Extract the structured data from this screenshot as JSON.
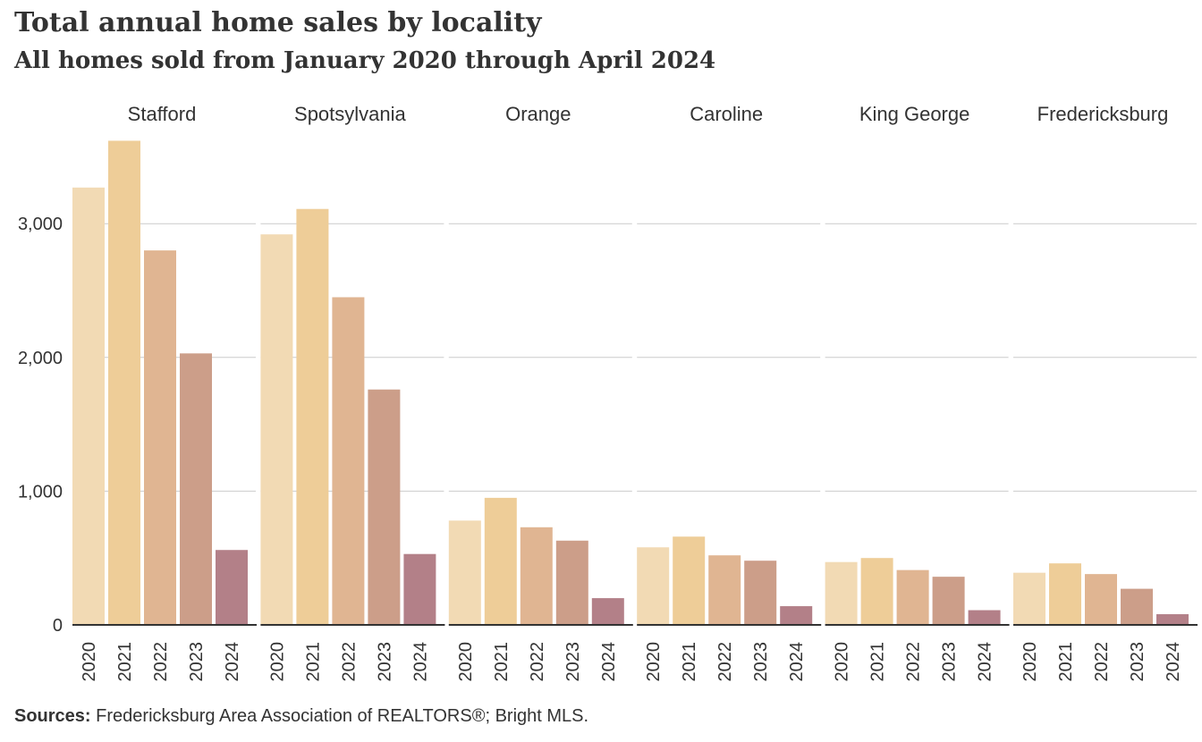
{
  "title": "Total annual home sales by locality",
  "subtitle": "All homes sold from January 2020 through April 2024",
  "source": {
    "label": "Sources:",
    "text": "Fredericksburg Area Association of REALTORS®; Bright MLS."
  },
  "colors": {
    "2020": "#f2dab4",
    "2021": "#eecd98",
    "2022": "#e0b592",
    "2023": "#cc9e89",
    "2024": "#b38088",
    "grid": "#cccccc",
    "baseline": "#333333"
  },
  "chart_data": {
    "type": "bar",
    "layout": "small-multiples",
    "title": "Total annual home sales by locality",
    "subtitle": "All homes sold from January 2020 through April 2024",
    "categories": [
      "2020",
      "2021",
      "2022",
      "2023",
      "2024"
    ],
    "ylim": [
      0,
      3700
    ],
    "yticks": [
      0,
      1000,
      2000,
      3000
    ],
    "ytick_labels": [
      "0",
      "1,000",
      "2,000",
      "3,000"
    ],
    "grid": true,
    "panels": [
      {
        "name": "Stafford",
        "values": [
          3270,
          3620,
          2800,
          2030,
          560
        ]
      },
      {
        "name": "Spotsylvania",
        "values": [
          2920,
          3110,
          2450,
          1760,
          530
        ]
      },
      {
        "name": "Orange",
        "values": [
          780,
          950,
          730,
          630,
          200
        ]
      },
      {
        "name": "Caroline",
        "values": [
          580,
          660,
          520,
          480,
          140
        ]
      },
      {
        "name": "King George",
        "values": [
          470,
          500,
          410,
          360,
          110
        ]
      },
      {
        "name": "Fredericksburg",
        "values": [
          390,
          460,
          380,
          270,
          80
        ]
      }
    ]
  }
}
